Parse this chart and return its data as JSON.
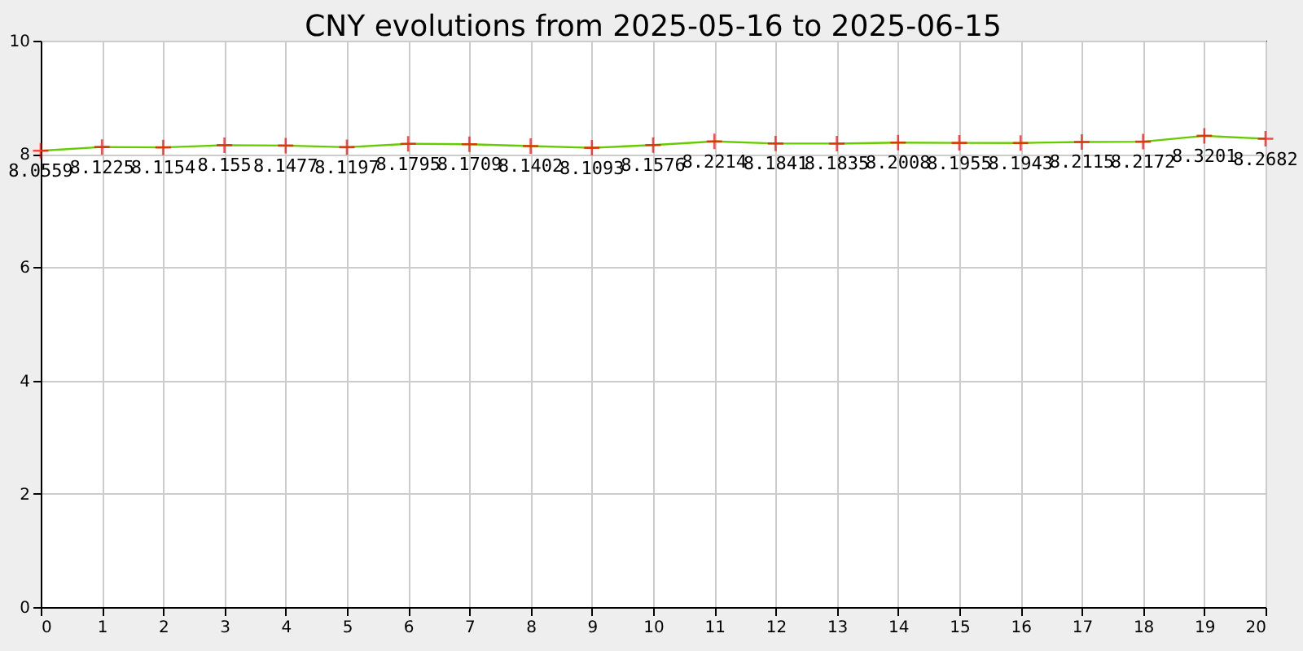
{
  "chart_data": {
    "type": "line",
    "title": "CNY evolutions from 2025-05-16 to 2025-06-15",
    "x": [
      0,
      1,
      2,
      3,
      4,
      5,
      6,
      7,
      8,
      9,
      10,
      11,
      12,
      13,
      14,
      15,
      16,
      17,
      18,
      19,
      20
    ],
    "series": [
      {
        "color": "#66cc00",
        "values": [
          8.0559,
          8.1225,
          8.1154,
          8.155,
          8.1477,
          8.1197,
          8.1795,
          8.1709,
          8.1402,
          8.1093,
          8.1576,
          8.2214,
          8.1841,
          8.1835,
          8.2008,
          8.1955,
          8.1943,
          8.2115,
          8.2172,
          8.3201,
          8.2682
        ]
      }
    ],
    "xlim": [
      0,
      20
    ],
    "xticks": [
      0,
      1,
      2,
      3,
      4,
      5,
      6,
      7,
      8,
      9,
      10,
      11,
      12,
      13,
      14,
      15,
      16,
      17,
      18,
      19,
      20
    ],
    "ylim": [
      0,
      10
    ],
    "yticks": [
      0,
      2,
      4,
      6,
      8,
      10
    ],
    "grid": true,
    "marker": "cross",
    "data_labels": true,
    "legend": false
  }
}
